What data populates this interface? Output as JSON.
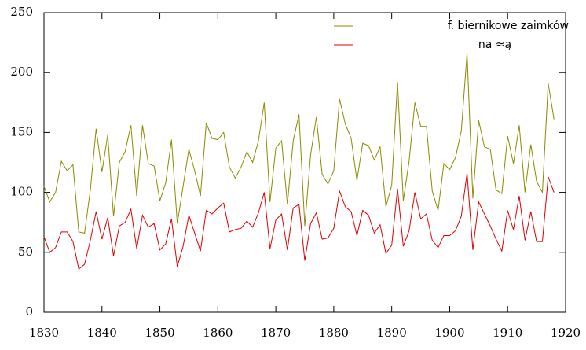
{
  "chart_data": {
    "type": "line",
    "x": [
      1830,
      1831,
      1832,
      1833,
      1834,
      1835,
      1836,
      1837,
      1838,
      1839,
      1840,
      1841,
      1842,
      1843,
      1844,
      1845,
      1846,
      1847,
      1848,
      1849,
      1850,
      1851,
      1852,
      1853,
      1854,
      1855,
      1856,
      1857,
      1858,
      1859,
      1860,
      1861,
      1862,
      1863,
      1864,
      1865,
      1866,
      1867,
      1868,
      1869,
      1870,
      1871,
      1872,
      1873,
      1874,
      1875,
      1876,
      1877,
      1878,
      1879,
      1880,
      1881,
      1882,
      1883,
      1884,
      1885,
      1886,
      1887,
      1888,
      1889,
      1890,
      1891,
      1892,
      1893,
      1894,
      1895,
      1896,
      1897,
      1898,
      1899,
      1900,
      1901,
      1902,
      1903,
      1904,
      1905,
      1906,
      1907,
      1908,
      1909,
      1910,
      1911,
      1912,
      1913,
      1914,
      1915,
      1916,
      1917,
      1918
    ],
    "series": [
      {
        "name": "f. biernikowe zaimków",
        "color": "#8b8b00",
        "values": [
          105,
          92,
          100,
          126,
          118,
          123,
          67,
          66,
          102,
          153,
          117,
          148,
          80,
          125,
          134,
          156,
          97,
          156,
          124,
          122,
          93,
          108,
          144,
          74,
          105,
          136,
          118,
          97,
          158,
          145,
          144,
          150,
          121,
          112,
          121,
          134,
          125,
          143,
          175,
          92,
          137,
          143,
          90,
          143,
          165,
          72,
          131,
          163,
          115,
          107,
          118,
          178,
          157,
          145,
          110,
          141,
          139,
          127,
          138,
          88,
          106,
          192,
          93,
          126,
          175,
          155,
          155,
          101,
          85,
          124,
          119,
          129,
          151,
          216,
          95,
          160,
          138,
          136,
          102,
          99,
          147,
          124,
          156,
          100,
          140,
          109,
          100,
          191,
          161
        ]
      },
      {
        "name": "na ≈ą",
        "color": "#e00000",
        "values": [
          63,
          50,
          54,
          67,
          67,
          59,
          36,
          40,
          60,
          84,
          61,
          79,
          47,
          72,
          75,
          86,
          53,
          81,
          71,
          74,
          52,
          57,
          78,
          38,
          55,
          81,
          66,
          51,
          85,
          82,
          87,
          91,
          67,
          69,
          70,
          76,
          71,
          83,
          100,
          53,
          77,
          82,
          52,
          87,
          90,
          43,
          74,
          83,
          61,
          62,
          70,
          101,
          88,
          84,
          64,
          85,
          81,
          66,
          73,
          49,
          56,
          103,
          55,
          68,
          100,
          78,
          82,
          60,
          54,
          64,
          64,
          68,
          80,
          116,
          52,
          92,
          82,
          72,
          61,
          51,
          85,
          69,
          97,
          60,
          84,
          59,
          59,
          113,
          100
        ]
      }
    ],
    "xlim": [
      1830,
      1920
    ],
    "xticks": [
      1830,
      1840,
      1850,
      1860,
      1870,
      1880,
      1890,
      1900,
      1910,
      1920
    ],
    "ylim": [
      0,
      250
    ],
    "yticks": [
      0,
      50,
      100,
      150,
      200,
      250
    ],
    "legend": "top-right"
  }
}
